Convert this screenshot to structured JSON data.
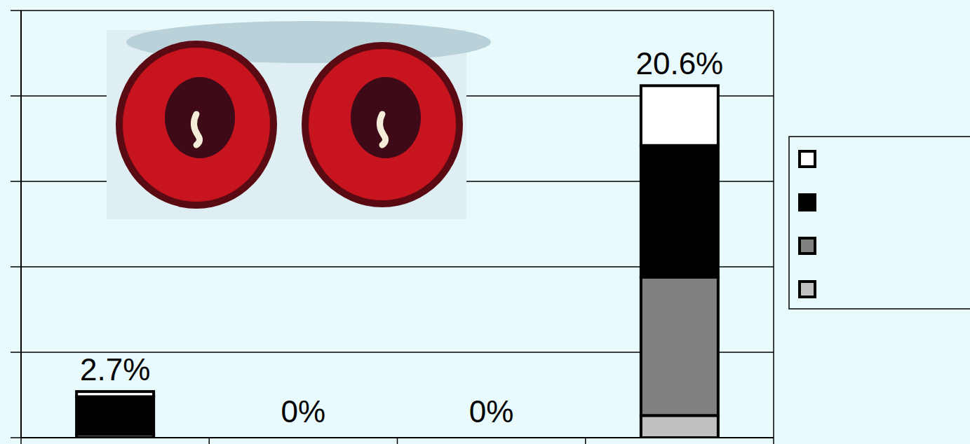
{
  "chart_data": {
    "type": "bar",
    "stacked": true,
    "grid": true,
    "legend": "right",
    "tick_labels": false,
    "categories": [
      null,
      null,
      null,
      null
    ],
    "ylim": [
      0,
      25
    ],
    "yticks": [
      0,
      5,
      10,
      15,
      20,
      25
    ],
    "series": [
      {
        "color": "#c0c0c0",
        "values": [
          0,
          0,
          0,
          1.3
        ]
      },
      {
        "color": "#808080",
        "values": [
          0.2,
          0,
          0,
          8.1
        ]
      },
      {
        "color": "#000000",
        "values": [
          2.2,
          0,
          0,
          7.7
        ]
      },
      {
        "color": "#ffffff",
        "values": [
          0.3,
          0,
          0,
          3.5
        ]
      }
    ],
    "totals": [
      2.7,
      0,
      0,
      20.6
    ],
    "total_labels": [
      "2.7%",
      "0%",
      "0%",
      "20.6%"
    ]
  }
}
